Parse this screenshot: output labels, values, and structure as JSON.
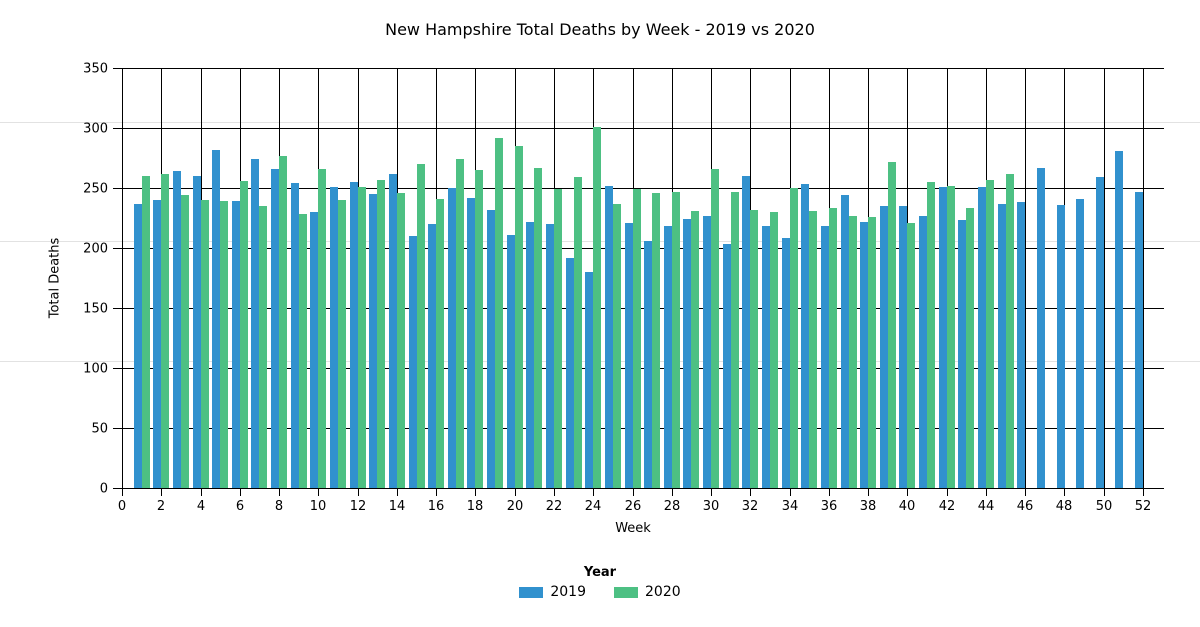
{
  "chart_data": {
    "type": "bar",
    "title": "New Hampshire Total Deaths by Week - 2019 vs 2020",
    "xlabel": "Week",
    "ylabel": "Total Deaths",
    "legend_title": "Year",
    "legend_position": "bottom",
    "grid": true,
    "ylim": [
      0,
      350
    ],
    "xlim": [
      0,
      52
    ],
    "y_ticks": [
      0,
      50,
      100,
      150,
      200,
      250,
      300,
      350
    ],
    "x_ticks": [
      0,
      2,
      4,
      6,
      8,
      10,
      12,
      14,
      16,
      18,
      20,
      22,
      24,
      26,
      28,
      30,
      32,
      34,
      36,
      38,
      40,
      42,
      44,
      46,
      48,
      50,
      52
    ],
    "categories": [
      1,
      2,
      3,
      4,
      5,
      6,
      7,
      8,
      9,
      10,
      11,
      12,
      13,
      14,
      15,
      16,
      17,
      18,
      19,
      20,
      21,
      22,
      23,
      24,
      25,
      26,
      27,
      28,
      29,
      30,
      31,
      32,
      33,
      34,
      35,
      36,
      37,
      38,
      39,
      40,
      41,
      42,
      43,
      44,
      45,
      46,
      47,
      48,
      49,
      50,
      51,
      52
    ],
    "series": [
      {
        "name": "2019",
        "color": "#3191CE",
        "values": [
          237,
          240,
          264,
          260,
          282,
          239,
          274,
          266,
          254,
          230,
          251,
          255,
          245,
          262,
          210,
          220,
          250,
          242,
          232,
          211,
          222,
          220,
          192,
          180,
          252,
          221,
          206,
          218,
          224,
          227,
          203,
          260,
          218,
          208,
          253,
          218,
          244,
          222,
          235,
          235,
          227,
          251,
          223,
          251,
          237,
          238,
          267,
          236,
          241,
          259,
          281,
          247
        ]
      },
      {
        "name": "2020",
        "color": "#4DC083",
        "values": [
          260,
          262,
          244,
          240,
          239,
          256,
          235,
          277,
          228,
          266,
          240,
          251,
          257,
          246,
          270,
          241,
          274,
          265,
          292,
          285,
          267,
          249,
          259,
          301,
          237,
          249,
          246,
          247,
          231,
          266,
          247,
          232,
          230,
          250,
          231,
          233,
          227,
          226,
          272,
          221,
          255,
          252,
          233,
          257,
          262
        ]
      }
    ]
  }
}
